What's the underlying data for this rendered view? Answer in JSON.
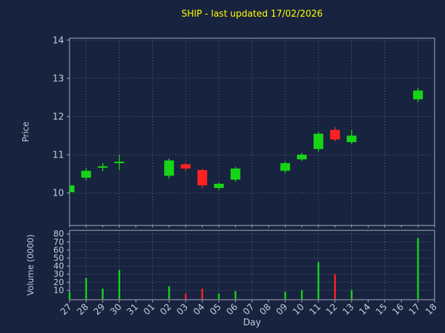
{
  "title": "SHIP - last updated 17/02/2026",
  "xlabel": "Day",
  "colors": {
    "background": "#18233f",
    "grid": "#a8b2c2",
    "title": "#ffff00",
    "text": "#c3cad6",
    "up": "#17d417",
    "down": "#ff2222"
  },
  "chart_data": [
    {
      "type": "candlestick",
      "title": "SHIP - last updated 17/02/2026",
      "xlabel": "Day",
      "ylabel": "Price",
      "ylim": [
        9.15,
        14.05
      ],
      "yticks": [
        10,
        11,
        12,
        13,
        14
      ],
      "grid": true,
      "categories": [
        "27",
        "28",
        "29",
        "30",
        "31",
        "01",
        "02",
        "03",
        "04",
        "05",
        "06",
        "07",
        "08",
        "09",
        "10",
        "11",
        "12",
        "13",
        "14",
        "15",
        "16",
        "17",
        "18"
      ],
      "candles": [
        {
          "day": "27",
          "open": 10.02,
          "high": 10.22,
          "low": 9.95,
          "close": 10.2
        },
        {
          "day": "28",
          "open": 10.4,
          "high": 10.65,
          "low": 10.33,
          "close": 10.58
        },
        {
          "day": "29",
          "open": 10.66,
          "high": 10.78,
          "low": 10.57,
          "close": 10.7
        },
        {
          "day": "30",
          "open": 10.78,
          "high": 11.0,
          "low": 10.6,
          "close": 10.82
        },
        null,
        null,
        {
          "day": "02",
          "open": 10.45,
          "high": 10.9,
          "low": 10.38,
          "close": 10.85
        },
        {
          "day": "03",
          "open": 10.75,
          "high": 10.8,
          "low": 10.57,
          "close": 10.64
        },
        {
          "day": "04",
          "open": 10.6,
          "high": 10.63,
          "low": 10.12,
          "close": 10.2
        },
        {
          "day": "05",
          "open": 10.13,
          "high": 10.28,
          "low": 10.08,
          "close": 10.24
        },
        {
          "day": "06",
          "open": 10.35,
          "high": 10.68,
          "low": 10.3,
          "close": 10.64
        },
        null,
        null,
        {
          "day": "09",
          "open": 10.58,
          "high": 10.82,
          "low": 10.52,
          "close": 10.78
        },
        {
          "day": "10",
          "open": 10.88,
          "high": 11.05,
          "low": 10.84,
          "close": 11.0
        },
        {
          "day": "11",
          "open": 11.15,
          "high": 11.6,
          "low": 11.08,
          "close": 11.55
        },
        {
          "day": "12",
          "open": 11.65,
          "high": 11.72,
          "low": 11.35,
          "close": 11.4
        },
        {
          "day": "13",
          "open": 11.33,
          "high": 11.65,
          "low": 11.28,
          "close": 11.5
        },
        null,
        null,
        null,
        {
          "day": "17",
          "open": 12.45,
          "high": 12.75,
          "low": 12.38,
          "close": 12.68
        },
        null
      ]
    },
    {
      "type": "bar",
      "ylabel": "Volume (0000)",
      "ylim": [
        0,
        84
      ],
      "yticks": [
        10,
        20,
        30,
        40,
        50,
        60,
        70,
        80
      ],
      "grid": true,
      "categories": [
        "27",
        "28",
        "29",
        "30",
        "31",
        "01",
        "02",
        "03",
        "04",
        "05",
        "06",
        "07",
        "08",
        "09",
        "10",
        "11",
        "12",
        "13",
        "14",
        "15",
        "16",
        "17",
        "18"
      ],
      "values": [
        8,
        25,
        12,
        35,
        0,
        0,
        15,
        6,
        12,
        6,
        9,
        0,
        0,
        8,
        10,
        45,
        30,
        10,
        0,
        0,
        0,
        75,
        0
      ],
      "bar_directions": [
        "up",
        "up",
        "up",
        "up",
        null,
        null,
        "up",
        "down",
        "down",
        "up",
        "up",
        null,
        null,
        "up",
        "up",
        "up",
        "down",
        "up",
        null,
        null,
        null,
        "up",
        null
      ]
    }
  ]
}
